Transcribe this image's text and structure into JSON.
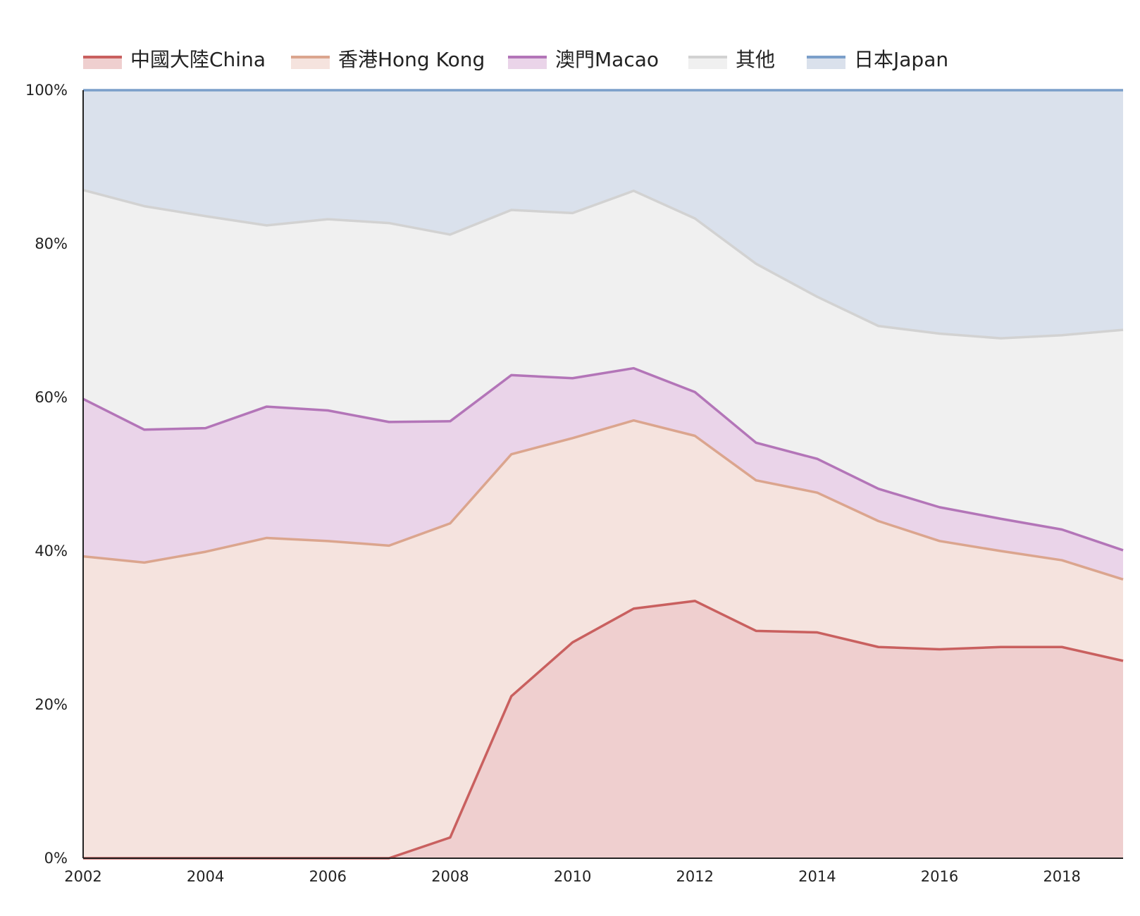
{
  "chart_data": {
    "type": "area",
    "stacked": true,
    "normalized": true,
    "x": [
      2002,
      2003,
      2004,
      2005,
      2006,
      2007,
      2008,
      2009,
      2010,
      2011,
      2012,
      2013,
      2014,
      2015,
      2016,
      2017,
      2018,
      2019
    ],
    "x_ticks": [
      "2002",
      "2004",
      "2006",
      "2008",
      "2010",
      "2012",
      "2014",
      "2016",
      "2018"
    ],
    "y_ticks": [
      "0%",
      "20%",
      "40%",
      "60%",
      "80%",
      "100%"
    ],
    "ylim": [
      0,
      100
    ],
    "y_unit": "%",
    "grid": true,
    "legend_position": "top-left",
    "series": [
      {
        "name": "中國大陸China",
        "color": "#c9605f",
        "fill": "#efcfcf",
        "cumulative": [
          0,
          0,
          0,
          0,
          0,
          0,
          2.7,
          21.1,
          28.1,
          32.5,
          33.5,
          29.6,
          29.4,
          27.5,
          27.2,
          27.5,
          27.5,
          25.7
        ]
      },
      {
        "name": "香港Hong Kong",
        "color": "#dba58e",
        "fill": "#f5e3de",
        "cumulative": [
          39.3,
          38.5,
          39.9,
          41.7,
          41.3,
          40.7,
          43.6,
          52.6,
          54.7,
          57.0,
          55.0,
          49.2,
          47.6,
          43.9,
          41.3,
          40.0,
          38.8,
          36.3
        ]
      },
      {
        "name": "澳門Macao",
        "color": "#b375b8",
        "fill": "#ead4e9",
        "cumulative": [
          59.8,
          55.8,
          56.0,
          58.8,
          58.3,
          56.8,
          56.9,
          62.9,
          62.5,
          63.8,
          60.7,
          54.1,
          52.0,
          48.1,
          45.7,
          44.2,
          42.8,
          40.1
        ]
      },
      {
        "name": "其他",
        "color": "#d2d2d2",
        "fill": "#f0f0f0",
        "cumulative": [
          87.0,
          84.9,
          83.6,
          82.4,
          83.2,
          82.7,
          81.2,
          84.4,
          84.0,
          86.9,
          83.3,
          77.4,
          73.1,
          69.3,
          68.3,
          67.7,
          68.1,
          68.8
        ]
      },
      {
        "name": "日本Japan",
        "color": "#7b9fca",
        "fill": "#dae1ec",
        "cumulative": [
          100,
          100,
          100,
          100,
          100,
          100,
          100,
          100,
          100,
          100,
          100,
          100,
          100,
          100,
          100,
          100,
          100,
          100
        ]
      }
    ]
  }
}
